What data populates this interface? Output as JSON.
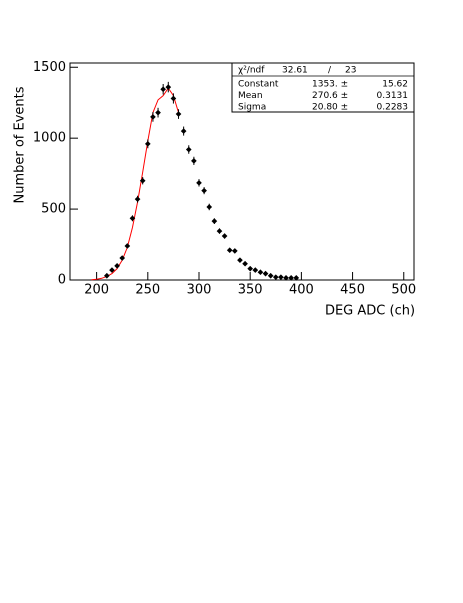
{
  "chart_data": {
    "type": "scatter",
    "x_label": "DEG ADC (ch)",
    "y_label": "Number of Events",
    "x": [
      210,
      215,
      220,
      225,
      230,
      235,
      240,
      245,
      250,
      255,
      260,
      265,
      270,
      275,
      280,
      285,
      290,
      295,
      300,
      305,
      310,
      315,
      320,
      325,
      330,
      335,
      340,
      345,
      350,
      355,
      360,
      365,
      370,
      375,
      380,
      385,
      390,
      395
    ],
    "values": [
      30,
      70,
      100,
      155,
      240,
      435,
      570,
      700,
      960,
      1150,
      1180,
      1345,
      1360,
      1280,
      1170,
      1050,
      920,
      840,
      685,
      630,
      515,
      415,
      345,
      310,
      210,
      205,
      140,
      115,
      80,
      70,
      55,
      45,
      30,
      20,
      20,
      15,
      15,
      15
    ],
    "errors": [
      5,
      8,
      10,
      12,
      15,
      21,
      24,
      26,
      31,
      34,
      34,
      37,
      37,
      36,
      34,
      32,
      30,
      29,
      26,
      25,
      23,
      20,
      19,
      18,
      14,
      14,
      12,
      11,
      9,
      8,
      7,
      7,
      5,
      4,
      4,
      4,
      4,
      4
    ],
    "color": "#000000",
    "fit": {
      "color": "#ff0000",
      "x": [
        195,
        200,
        205,
        210,
        215,
        220,
        225,
        230,
        235,
        240,
        245,
        250,
        255,
        260,
        265,
        270,
        275,
        280
      ],
      "values": [
        2,
        5,
        12,
        25,
        45,
        80,
        140,
        230,
        370,
        550,
        760,
        980,
        1180,
        1270,
        1300,
        1353,
        1300,
        1180
      ]
    },
    "xlim": [
      174,
      510
    ],
    "ylim": [
      0,
      1530
    ],
    "xticks": [
      200,
      250,
      300,
      350,
      400,
      450,
      500
    ],
    "yticks": [
      0,
      500,
      1000,
      1500
    ],
    "stats": {
      "header": [
        "χ²/ndf",
        "32.61",
        "/",
        "23"
      ],
      "rows": [
        [
          "Constant",
          "1353. ±",
          "15.62"
        ],
        [
          "Mean",
          "270.6 ±",
          "0.3131"
        ],
        [
          "Sigma",
          "20.80 ±",
          "0.2283"
        ]
      ]
    }
  }
}
